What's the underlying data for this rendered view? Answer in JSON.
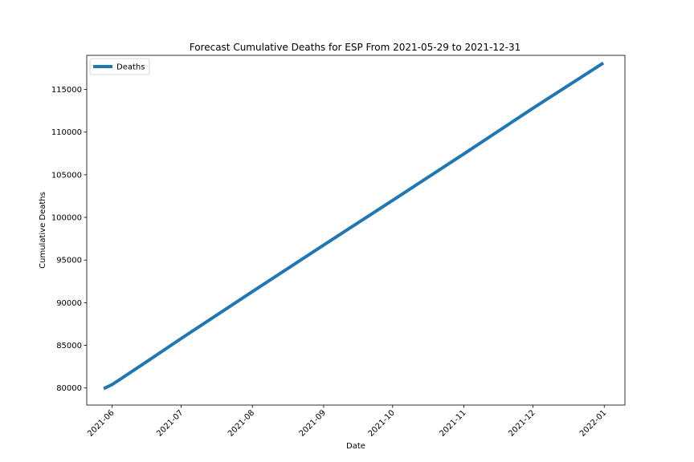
{
  "chart_data": {
    "type": "line",
    "title": "Forecast Cumulative Deaths for ESP From 2021-05-29 to 2021-12-31",
    "xlabel": "Date",
    "ylabel": "Cumulative Deaths",
    "xlim": [
      "2021-05-21",
      "2022-01-10"
    ],
    "ylim": [
      78000,
      119000
    ],
    "x_ticks": [
      "2021-06-01",
      "2021-07-01",
      "2021-08-01",
      "2021-09-01",
      "2021-10-01",
      "2021-11-01",
      "2021-12-01",
      "2022-01-01"
    ],
    "x_tick_labels": [
      "2021-06",
      "2021-07",
      "2021-08",
      "2021-09",
      "2021-10",
      "2021-11",
      "2021-12",
      "2022-01"
    ],
    "y_ticks": [
      80000,
      85000,
      90000,
      95000,
      100000,
      105000,
      110000,
      115000
    ],
    "y_tick_labels": [
      "80000",
      "85000",
      "90000",
      "95000",
      "100000",
      "105000",
      "110000",
      "115000"
    ],
    "grid": false,
    "legend_position": "top-left",
    "series": [
      {
        "name": "Deaths",
        "color": "#1f77b4",
        "x": [
          "2021-05-29",
          "2021-06-01",
          "2021-06-05",
          "2021-06-15",
          "2021-07-01",
          "2021-08-01",
          "2021-09-01",
          "2021-10-01",
          "2021-11-01",
          "2021-12-01",
          "2021-12-31"
        ],
        "y": [
          80000,
          80400,
          81100,
          82900,
          85800,
          91300,
          96750,
          102000,
          107450,
          112800,
          118000
        ]
      }
    ]
  }
}
